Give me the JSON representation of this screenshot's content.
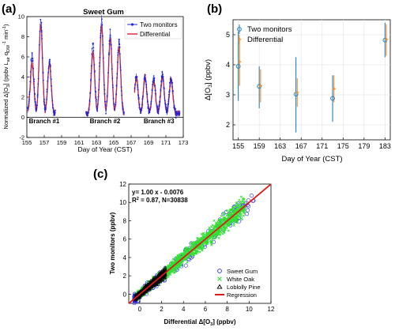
{
  "figure": {
    "panel_a_tag": "(a)",
    "panel_b_tag": "(b)",
    "panel_c_tag": "(c)"
  },
  "chart_data": [
    {
      "type": "line",
      "panel": "(a)",
      "title": "Sweet Gum",
      "xlabel": "Day of Year (CST)",
      "ylabel_parts": [
        "Normalized Δ[O",
        "3",
        "] (ppbv L",
        "air",
        " q",
        "DW",
        "-1",
        " min",
        "-1",
        ")"
      ],
      "xlim": [
        155,
        173
      ],
      "ylim": [
        -2,
        10
      ],
      "xticks": [
        155,
        157,
        159,
        161,
        163,
        165,
        167,
        169,
        171,
        173
      ],
      "yticks": [
        -2,
        0,
        2,
        4,
        6,
        8,
        10
      ],
      "branch_labels": [
        {
          "text": "Branch #1",
          "x": 157,
          "y": -0.6
        },
        {
          "text": "Branch #2",
          "x": 164,
          "y": -0.6
        },
        {
          "text": "Branch #3",
          "x": 170.2,
          "y": -0.6
        }
      ],
      "segments": [
        [
          155.1,
          158.3
        ],
        [
          161.8,
          166.2
        ],
        [
          167.4,
          172.6
        ]
      ],
      "daily_peaks": [
        {
          "day": 155.6,
          "two_monitors": 6.2,
          "differential": 5.3
        },
        {
          "day": 156.6,
          "two_monitors": 9.6,
          "differential": 9.2
        },
        {
          "day": 157.6,
          "two_monitors": 5.6,
          "differential": 5.3
        },
        {
          "day": 162.6,
          "two_monitors": 7.3,
          "differential": 6.5
        },
        {
          "day": 163.6,
          "two_monitors": 9.7,
          "differential": 9.1
        },
        {
          "day": 164.6,
          "two_monitors": 8.2,
          "differential": 7.8
        },
        {
          "day": 165.6,
          "two_monitors": 7.4,
          "differential": 6.9
        },
        {
          "day": 167.6,
          "two_monitors": 4.1,
          "differential": 3.9
        },
        {
          "day": 168.6,
          "two_monitors": 4.0,
          "differential": 4.0
        },
        {
          "day": 169.6,
          "two_monitors": 3.8,
          "differential": 3.6
        },
        {
          "day": 170.6,
          "two_monitors": 4.3,
          "differential": 4.0
        },
        {
          "day": 171.6,
          "two_monitors": 3.9,
          "differential": 3.7
        }
      ],
      "night_value": 0.4,
      "legend": "top-right",
      "series": [
        {
          "name": "Two monitors",
          "color": "#2323d8"
        },
        {
          "name": "Differential",
          "color": "#e0202a"
        }
      ]
    },
    {
      "type": "scatter",
      "panel": "(b)",
      "title": "",
      "xlabel": "Day of Year (CST)",
      "ylabel_parts": [
        "Δ[O",
        "3",
        "] (ppbv)"
      ],
      "xlim": [
        154,
        184
      ],
      "ylim": [
        1.5,
        5.5
      ],
      "xticks": [
        155,
        159,
        163,
        167,
        171,
        175,
        179,
        183
      ],
      "yticks": [
        2,
        3,
        4,
        5
      ],
      "grid": true,
      "legend": "top-left",
      "series": [
        {
          "name": "Two monitors",
          "color": "#2a7fb8",
          "points": [
            {
              "x": 155,
              "y": 3.95,
              "lo": 2.8,
              "hi": 5.1
            },
            {
              "x": 159,
              "y": 3.28,
              "lo": 2.55,
              "hi": 3.95
            },
            {
              "x": 166,
              "y": 3.02,
              "lo": 1.75,
              "hi": 4.25
            },
            {
              "x": 173,
              "y": 2.88,
              "lo": 2.1,
              "hi": 3.65
            },
            {
              "x": 183,
              "y": 4.82,
              "lo": 4.25,
              "hi": 5.4
            }
          ]
        },
        {
          "name": "Differential",
          "color": "#f28c28",
          "points": [
            {
              "x": 155.25,
              "y": 4.1,
              "lo": 3.3,
              "hi": 4.9
            },
            {
              "x": 159.25,
              "y": 3.3,
              "lo": 2.75,
              "hi": 3.85
            },
            {
              "x": 166.25,
              "y": 3.08,
              "lo": 2.6,
              "hi": 3.55
            },
            {
              "x": 173.25,
              "y": 3.2,
              "lo": 2.75,
              "hi": 3.65
            },
            {
              "x": 183.25,
              "y": 4.85,
              "lo": 4.3,
              "hi": 5.35
            }
          ]
        }
      ]
    },
    {
      "type": "scatter",
      "panel": "(c)",
      "title": "",
      "xlabel_parts": [
        "Differential Δ[O",
        "3",
        "] (ppbv)"
      ],
      "ylabel": "Two monitors (ppbv)",
      "xlim": [
        -1,
        12
      ],
      "ylim": [
        -1,
        12
      ],
      "xticks": [
        0,
        2,
        4,
        6,
        8,
        10,
        12
      ],
      "yticks": [
        0,
        2,
        4,
        6,
        8,
        10,
        12
      ],
      "annotation_fit": "y= 1.00 x - 0.0076",
      "annotation_r2_prefix": "R",
      "annotation_r2_sup": "2",
      "annotation_r2_rest": " = 0.87, N=30838",
      "regression": {
        "slope": 1.0,
        "intercept": -0.0076
      },
      "legend": "bottom-right",
      "series": [
        {
          "name": "Sweet Gum",
          "marker": "circle",
          "color": "#2a2ae0",
          "x_range": [
            -0.5,
            10.5
          ],
          "spread": 0.9
        },
        {
          "name": "White Oak",
          "marker": "cross",
          "color": "#30e030",
          "x_range": [
            -0.3,
            9.6
          ],
          "spread": 0.65
        },
        {
          "name": "Loblolly Pine",
          "marker": "triangle",
          "color": "#000000",
          "x_range": [
            -0.4,
            2.4
          ],
          "spread": 0.35
        },
        {
          "name": "Regression",
          "marker": "line",
          "color": "#e01818"
        }
      ]
    }
  ]
}
